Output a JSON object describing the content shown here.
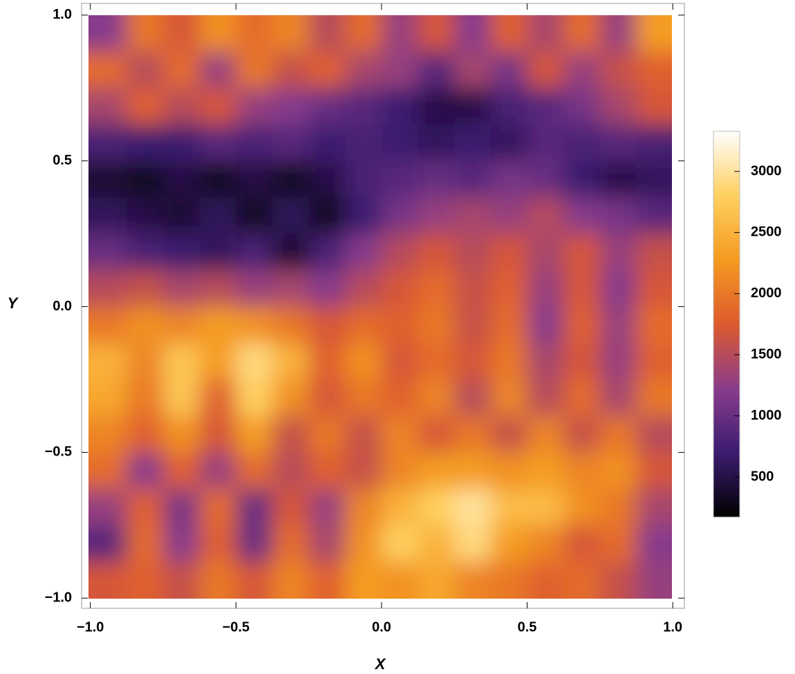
{
  "chart_data": {
    "type": "heatmap",
    "xlabel": "X",
    "ylabel": "Y",
    "x": [
      -0.9375,
      -0.8125,
      -0.6875,
      -0.5625,
      -0.4375,
      -0.3125,
      -0.1875,
      -0.0625,
      0.0625,
      0.1875,
      0.3125,
      0.4375,
      0.5625,
      0.6875,
      0.8125,
      0.9375
    ],
    "y": [
      0.9375,
      0.8125,
      0.6875,
      0.5625,
      0.4375,
      0.3125,
      0.1875,
      0.0625,
      -0.0625,
      -0.1875,
      -0.3125,
      -0.4375,
      -0.5625,
      -0.6875,
      -0.8125,
      -0.9375
    ],
    "values": [
      [
        1200,
        2000,
        1700,
        2200,
        1900,
        2100,
        1500,
        1900,
        1300,
        1700,
        1200,
        1800,
        1400,
        1900,
        1300,
        2300
      ],
      [
        1900,
        1500,
        1900,
        1300,
        2000,
        1600,
        1800,
        1400,
        1300,
        900,
        1400,
        1100,
        1700,
        1300,
        1600,
        1800
      ],
      [
        1400,
        1800,
        1500,
        1700,
        1300,
        1200,
        1000,
        900,
        700,
        500,
        500,
        800,
        900,
        1100,
        1400,
        1700
      ],
      [
        800,
        700,
        700,
        900,
        800,
        900,
        700,
        800,
        700,
        600,
        700,
        600,
        900,
        800,
        900,
        800
      ],
      [
        400,
        300,
        500,
        300,
        500,
        300,
        500,
        800,
        900,
        1000,
        900,
        1100,
        1000,
        700,
        500,
        600
      ],
      [
        600,
        500,
        400,
        600,
        300,
        600,
        300,
        700,
        1100,
        1300,
        1400,
        1300,
        1500,
        1200,
        1100,
        900
      ],
      [
        1000,
        800,
        700,
        600,
        800,
        400,
        800,
        1200,
        1500,
        1700,
        1500,
        1700,
        1400,
        1700,
        1300,
        1600
      ],
      [
        1500,
        1600,
        1400,
        1500,
        1300,
        1400,
        1200,
        1500,
        1700,
        1900,
        1600,
        1800,
        1300,
        1700,
        1200,
        1700
      ],
      [
        2000,
        2200,
        2100,
        2300,
        2200,
        2000,
        1700,
        1900,
        1800,
        2000,
        1600,
        1900,
        1200,
        1800,
        1300,
        1900
      ],
      [
        2500,
        2100,
        2700,
        2300,
        2900,
        2500,
        1800,
        2200,
        1700,
        1900,
        1700,
        2000,
        1400,
        1700,
        1300,
        1800
      ],
      [
        2400,
        2000,
        2700,
        1800,
        2800,
        2200,
        1700,
        2000,
        1800,
        2100,
        1500,
        2100,
        1500,
        1900,
        1400,
        2000
      ],
      [
        2100,
        1800,
        2200,
        1700,
        2300,
        1600,
        2000,
        1600,
        2100,
        1700,
        2000,
        1600,
        2100,
        1600,
        2000,
        1500
      ],
      [
        1900,
        1200,
        1800,
        1300,
        1900,
        1500,
        1800,
        1600,
        2100,
        2300,
        2300,
        2200,
        2300,
        2100,
        2200,
        1700
      ],
      [
        1300,
        1800,
        1100,
        1900,
        1000,
        1700,
        1300,
        2100,
        2500,
        2800,
        3000,
        2600,
        2600,
        2200,
        2000,
        1400
      ],
      [
        900,
        1900,
        1200,
        1800,
        1000,
        1900,
        1400,
        2200,
        2800,
        2500,
        2900,
        2300,
        2100,
        1700,
        1900,
        1200
      ],
      [
        1700,
        1800,
        1600,
        2000,
        1700,
        2100,
        1800,
        2300,
        2200,
        2400,
        2100,
        2000,
        1800,
        1900,
        1600,
        1300
      ]
    ],
    "xlim": [
      -1.03,
      1.04
    ],
    "ylim": [
      -1.035,
      1.04
    ],
    "xticks": [
      {
        "value": -1.0,
        "label": "−1.0"
      },
      {
        "value": -0.5,
        "label": "−0.5"
      },
      {
        "value": 0.0,
        "label": "0.0"
      },
      0.5,
      {
        "value": 1.0,
        "label": "1.0"
      }
    ],
    "yticks": [
      {
        "value": -1.0,
        "label": "−1.0"
      },
      {
        "value": -0.5,
        "label": "−0.5"
      },
      {
        "value": 0.0,
        "label": "0.0"
      },
      0.5,
      {
        "value": 1.0,
        "label": "1.0"
      }
    ],
    "clim": [
      172,
      3328
    ],
    "cticks": [
      500,
      1000,
      1500,
      2000,
      2500,
      3000
    ],
    "colorscale": [
      "#000000",
      "#3b1c70",
      "#8a3c8c",
      "#dd5a2e",
      "#f59a20",
      "#ffd060",
      "#ffffff"
    ]
  }
}
